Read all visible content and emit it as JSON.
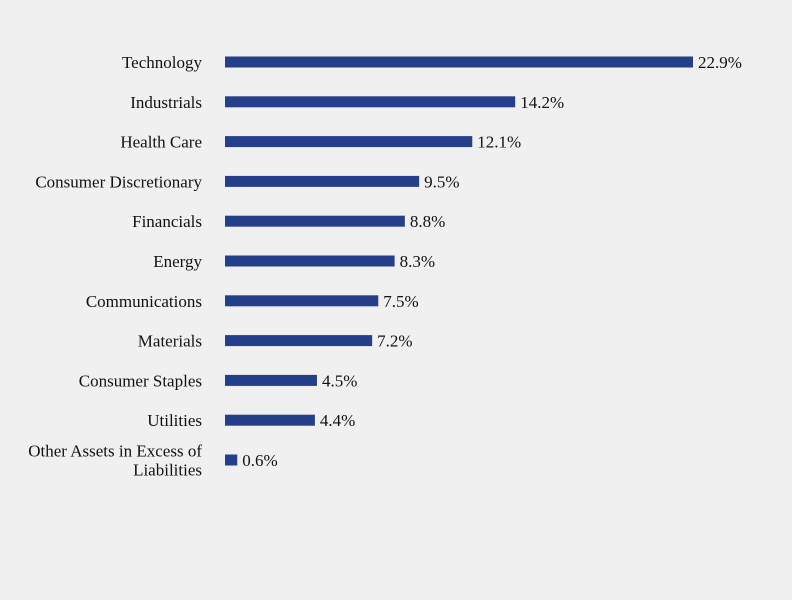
{
  "chart_data": {
    "type": "bar",
    "orientation": "horizontal",
    "categories": [
      "Technology",
      "Industrials",
      "Health Care",
      "Consumer Discretionary",
      "Financials",
      "Energy",
      "Communications",
      "Materials",
      "Consumer Staples",
      "Utilities",
      "Other Assets in Excess of Liabilities"
    ],
    "values": [
      22.9,
      14.2,
      12.1,
      9.5,
      8.8,
      8.3,
      7.5,
      7.2,
      4.5,
      4.4,
      0.6
    ],
    "value_labels": [
      "22.9%",
      "14.2%",
      "12.1%",
      "9.5%",
      "8.8%",
      "8.3%",
      "7.5%",
      "7.2%",
      "4.5%",
      "4.4%",
      "0.6%"
    ],
    "title": "",
    "xlabel": "",
    "ylabel": "",
    "xlim": [
      0,
      22.9
    ],
    "grid": false,
    "legend": "none",
    "bar_color": "#253f8a"
  }
}
